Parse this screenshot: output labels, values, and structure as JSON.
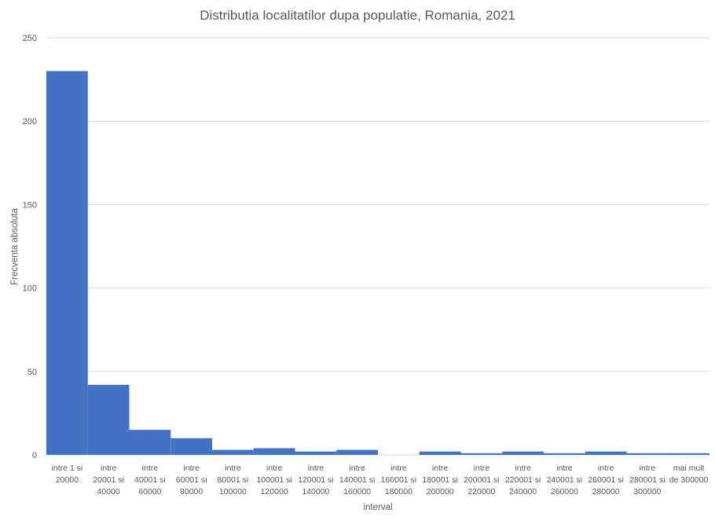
{
  "chart_data": {
    "type": "bar",
    "title": "Distributia localitatilor dupa populatie, Romania, 2021",
    "xlabel": "interval",
    "ylabel": "Frecventa absoluta",
    "ylim": [
      0,
      250
    ],
    "yticks": [
      0,
      50,
      100,
      150,
      200,
      250
    ],
    "grid": true,
    "legend": "none",
    "color": "#4472c4",
    "categories": [
      [
        "intre 1 si",
        "20000"
      ],
      [
        "intre",
        "20001 si",
        "40000"
      ],
      [
        "intre",
        "40001 si",
        "60000"
      ],
      [
        "intre",
        "60001 si",
        "80000"
      ],
      [
        "intre",
        "80001 si",
        "100000"
      ],
      [
        "intre",
        "100001 si",
        "120000"
      ],
      [
        "intre",
        "120001 si",
        "140000"
      ],
      [
        "intre",
        "140001 si",
        "160000"
      ],
      [
        "intre",
        "160001 si",
        "180000"
      ],
      [
        "intre",
        "180001 si",
        "200000"
      ],
      [
        "intre",
        "200001 si",
        "220000"
      ],
      [
        "intre",
        "220001 si",
        "240000"
      ],
      [
        "intre",
        "240001 si",
        "260000"
      ],
      [
        "intre",
        "260001 si",
        "280000"
      ],
      [
        "intre",
        "280001 si",
        "300000"
      ],
      [
        "mai mult",
        "de 300000"
      ]
    ],
    "values": [
      230,
      42,
      15,
      10,
      3,
      4,
      2,
      3,
      0,
      2,
      1,
      2,
      1,
      2,
      1,
      1
    ]
  }
}
